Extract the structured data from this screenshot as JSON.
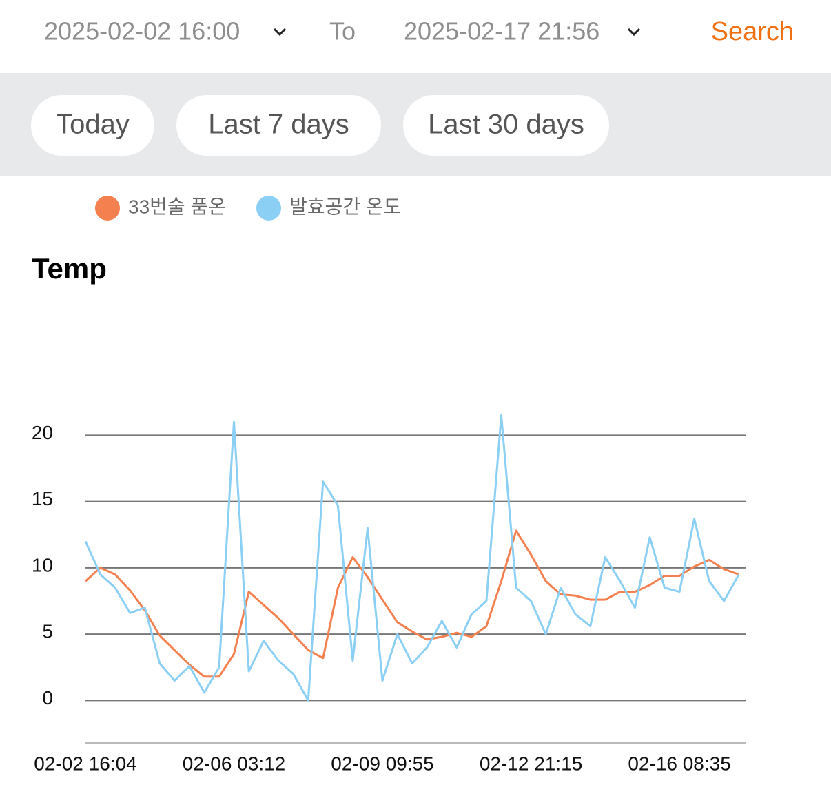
{
  "header": {
    "start": "2025-02-02 16:00",
    "to": "To",
    "end": "2025-02-17 21:56",
    "search": "Search"
  },
  "quick_ranges": [
    "Today",
    "Last 7 days",
    "Last 30 days"
  ],
  "chart_data": {
    "type": "line",
    "title": "Temp",
    "categories": [
      "02-02 16:04",
      null,
      null,
      null,
      null,
      null,
      null,
      null,
      null,
      null,
      "02-06 03:12",
      null,
      null,
      null,
      null,
      null,
      null,
      null,
      null,
      null,
      "02-09 09:55",
      null,
      null,
      null,
      null,
      null,
      null,
      null,
      null,
      null,
      "02-12 21:15",
      null,
      null,
      null,
      null,
      null,
      null,
      null,
      null,
      null,
      "02-16 08:35",
      null,
      null,
      null,
      null
    ],
    "series": [
      {
        "name": "33번술 품온",
        "color": "#f4804f",
        "values": [
          9,
          10,
          9.5,
          8.3,
          6.8,
          4.9,
          3.8,
          2.7,
          1.8,
          1.8,
          3.5,
          8.2,
          7.2,
          6.2,
          5,
          3.8,
          3.2,
          8.5,
          10.8,
          9.3,
          7.6,
          5.9,
          5.2,
          4.6,
          4.8,
          5.1,
          4.8,
          5.6,
          9,
          12.8,
          11,
          9,
          8,
          7.9,
          7.6,
          7.6,
          8.2,
          8.2,
          8.7,
          9.4,
          9.4,
          10.1,
          10.6,
          9.9,
          9.5
        ]
      },
      {
        "name": "발효공간 온도",
        "color": "#8ccff5",
        "values": [
          12,
          9.5,
          8.5,
          6.6,
          7,
          2.8,
          1.5,
          2.6,
          0.6,
          2.5,
          21,
          2.2,
          4.5,
          3,
          2,
          0,
          16.5,
          14.7,
          3,
          13,
          1.5,
          5,
          2.8,
          4,
          6,
          4,
          6.5,
          7.5,
          21.5,
          8.5,
          7.5,
          5,
          8.5,
          6.5,
          5.6,
          10.8,
          9,
          7,
          12.3,
          8.5,
          8.2,
          13.7,
          9,
          7.5,
          9.5
        ]
      }
    ],
    "ylim": [
      -3.2,
      23
    ],
    "yticks": [
      0,
      5,
      10,
      15,
      20
    ],
    "grid": true
  }
}
